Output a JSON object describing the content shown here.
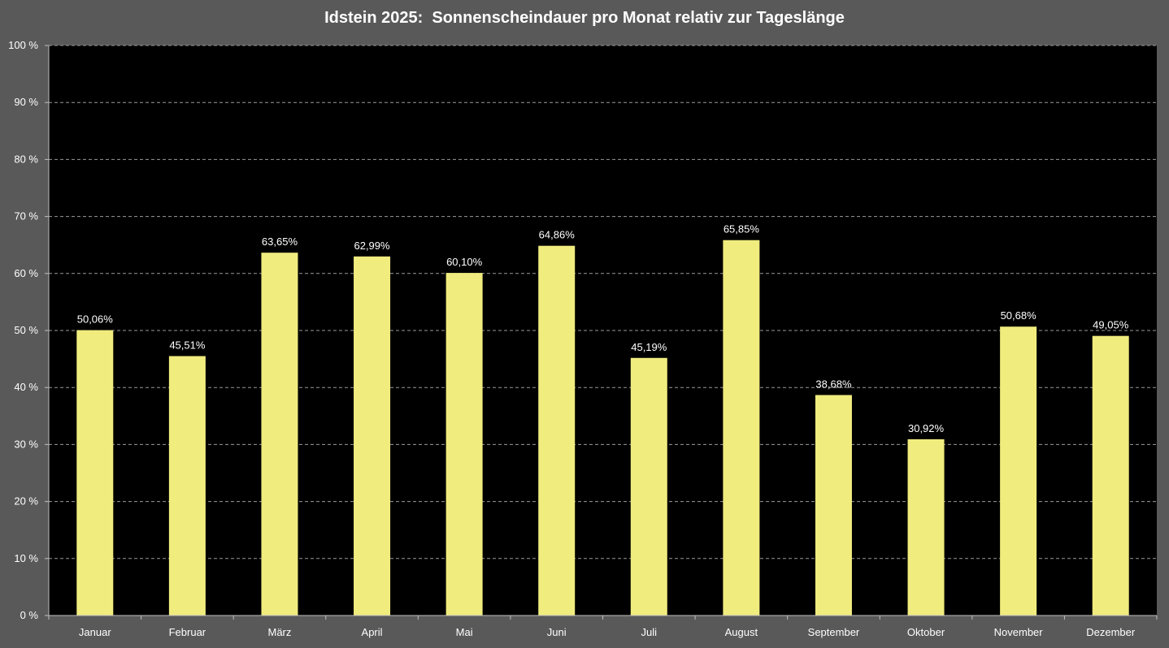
{
  "chart_data": {
    "type": "bar",
    "title": "Idstein 2025:  Sonnenscheindauer pro Monat relativ zur Tageslänge",
    "xlabel": "",
    "ylabel": "",
    "categories": [
      "Januar",
      "Februar",
      "März",
      "April",
      "Mai",
      "Juni",
      "Juli",
      "August",
      "September",
      "Oktober",
      "November",
      "Dezember"
    ],
    "values": [
      50.06,
      45.51,
      63.65,
      62.99,
      60.1,
      64.86,
      45.19,
      65.85,
      38.68,
      30.92,
      50.68,
      49.05
    ],
    "value_labels": [
      "50,06%",
      "45,51%",
      "63,65%",
      "62,99%",
      "60,10%",
      "64,86%",
      "45,19%",
      "65,85%",
      "38,68%",
      "30,92%",
      "50,68%",
      "49,05%"
    ],
    "ylim": [
      0,
      100
    ],
    "yticks": [
      0,
      10,
      20,
      30,
      40,
      50,
      60,
      70,
      80,
      90,
      100
    ],
    "ytick_labels": [
      "0 %",
      "10 %",
      "20 %",
      "30 %",
      "40 %",
      "50 %",
      "60 %",
      "70 %",
      "80 %",
      "90 %",
      "100 %"
    ],
    "grid": true,
    "legend": "none",
    "colors": {
      "bar": "#F0EC7E",
      "plot_background": "#000000",
      "chart_background": "#595959",
      "gridline": "#9a9a9a",
      "text": "#ffffff"
    }
  }
}
